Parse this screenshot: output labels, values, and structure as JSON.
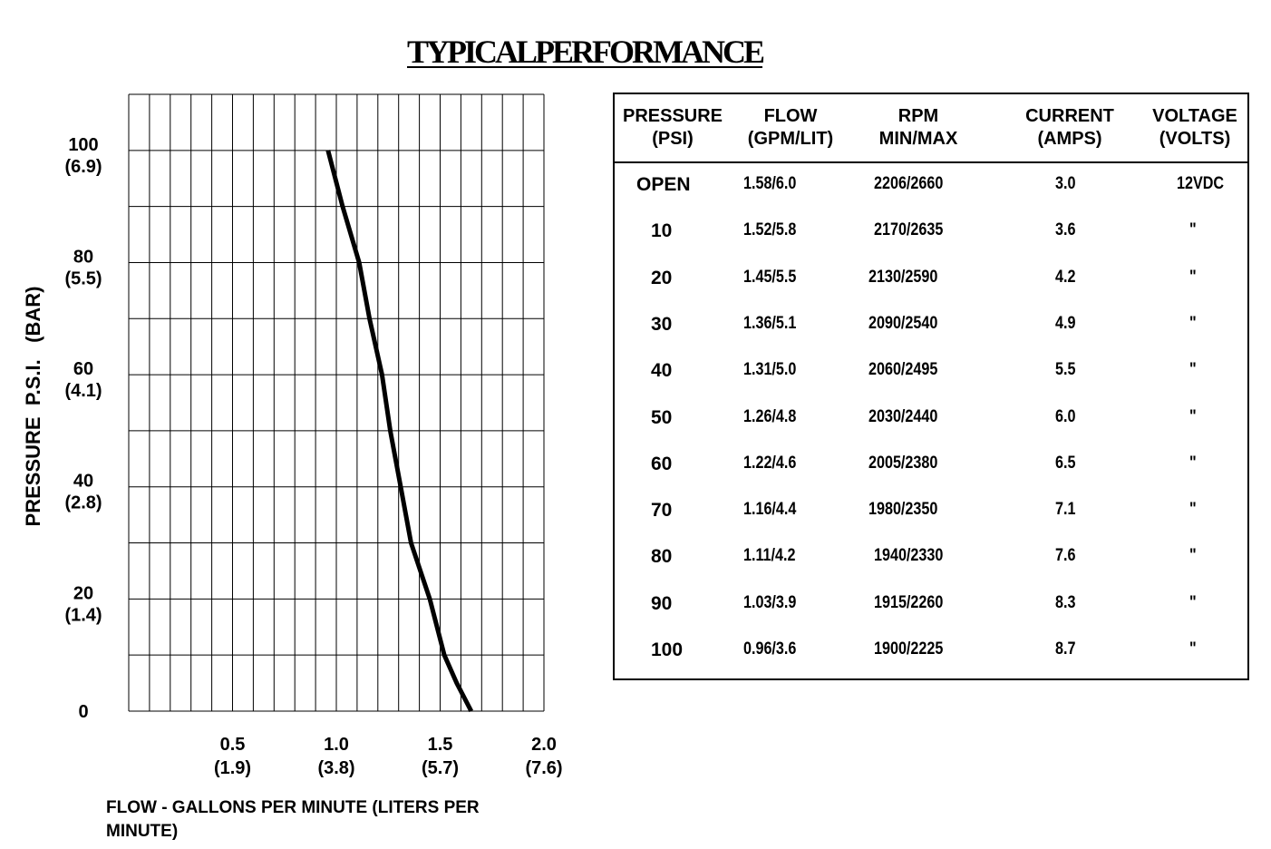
{
  "title": "TYPICALPERFORMANCE",
  "chart_data": {
    "type": "line",
    "xlabel": "FLOW - GALLONS PER MINUTE  (LITERS PER MINUTE)",
    "ylabel": "PRESSURE  P.S.I.   (BAR)",
    "xlim": [
      0,
      2.0
    ],
    "ylim": [
      0,
      110
    ],
    "x_ticks": [
      {
        "value": 0.5,
        "label": "0.5",
        "sublabel": "(1.9)"
      },
      {
        "value": 1.0,
        "label": "1.0",
        "sublabel": "(3.8)"
      },
      {
        "value": 1.5,
        "label": "1.5",
        "sublabel": "(5.7)"
      },
      {
        "value": 2.0,
        "label": "2.0",
        "sublabel": "(7.6)"
      }
    ],
    "y_ticks": [
      {
        "value": 0,
        "label": "0",
        "sublabel": ""
      },
      {
        "value": 20,
        "label": "20",
        "sublabel": "(1.4)"
      },
      {
        "value": 40,
        "label": "40",
        "sublabel": "(2.8)"
      },
      {
        "value": 60,
        "label": "60",
        "sublabel": "(4.1)"
      },
      {
        "value": 80,
        "label": "80",
        "sublabel": "(5.5)"
      },
      {
        "value": 100,
        "label": "100",
        "sublabel": "(6.9)"
      }
    ],
    "grid": true,
    "grid_x_step": 0.1,
    "grid_y_step": 10,
    "series": [
      {
        "x": [
          1.65,
          1.58,
          1.52,
          1.45,
          1.36,
          1.31,
          1.26,
          1.22,
          1.16,
          1.11,
          1.03,
          0.96
        ],
        "y": [
          0,
          5,
          10,
          20,
          30,
          40,
          50,
          60,
          70,
          80,
          90,
          100
        ],
        "color": "#000000"
      }
    ]
  },
  "table": {
    "headers": [
      [
        "PRESSURE",
        "(PSI)"
      ],
      [
        "FLOW",
        "(GPM/LIT)"
      ],
      [
        "RPM",
        "MIN/MAX"
      ],
      [
        "CURRENT",
        "(AMPS)"
      ],
      [
        "VOLTAGE",
        "(VOLTS)"
      ]
    ],
    "rows": [
      [
        "OPEN",
        "1.58/6.0",
        "2206/2660",
        "3.0",
        "12VDC"
      ],
      [
        "10",
        "1.52/5.8",
        "2170/2635",
        "3.6",
        "\""
      ],
      [
        "20",
        "1.45/5.5",
        "2130/2590",
        "4.2",
        "\""
      ],
      [
        "30",
        "1.36/5.1",
        "2090/2540",
        "4.9",
        "\""
      ],
      [
        "40",
        "1.31/5.0",
        "2060/2495",
        "5.5",
        "\""
      ],
      [
        "50",
        "1.26/4.8",
        "2030/2440",
        "6.0",
        "\""
      ],
      [
        "60",
        "1.22/4.6",
        "2005/2380",
        "6.5",
        "\""
      ],
      [
        "70",
        "1.16/4.4",
        "1980/2350",
        "7.1",
        "\""
      ],
      [
        "80",
        "1.11/4.2",
        "1940/2330",
        "7.6",
        "\""
      ],
      [
        "90",
        "1.03/3.9",
        "1915/2260",
        "8.3",
        "\""
      ],
      [
        "100",
        "0.96/3.6",
        "1900/2225",
        "8.7",
        "\""
      ]
    ]
  }
}
